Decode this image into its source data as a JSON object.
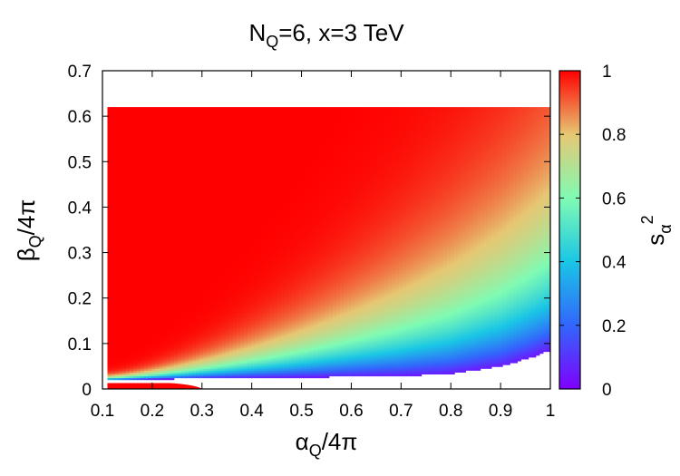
{
  "chart_data": {
    "type": "heatmap",
    "title": {
      "main": "N",
      "sub": "Q",
      "rest": "=6, x=3 TeV"
    },
    "xlabel": {
      "greek": "α",
      "sub": "Q",
      "rest": "/4π"
    },
    "ylabel": {
      "greek": "β",
      "sub": "Q",
      "rest": "/4π"
    },
    "colorbar_label": {
      "base": "s",
      "sub": "α",
      "sup": "2"
    },
    "xlim": [
      0.1,
      1.0
    ],
    "ylim": [
      0,
      0.7
    ],
    "zlim": [
      0,
      1
    ],
    "x_ticks": [
      "0.1",
      "0.2",
      "0.3",
      "0.4",
      "0.5",
      "0.6",
      "0.7",
      "0.8",
      "0.9",
      "1"
    ],
    "x_tick_values": [
      0.1,
      0.2,
      0.3,
      0.4,
      0.5,
      0.6,
      0.7,
      0.8,
      0.9,
      1.0
    ],
    "y_ticks": [
      "0",
      "0.1",
      "0.2",
      "0.3",
      "0.4",
      "0.5",
      "0.6",
      "0.7"
    ],
    "y_tick_values": [
      0,
      0.1,
      0.2,
      0.3,
      0.4,
      0.5,
      0.6,
      0.7
    ],
    "colorbar_ticks": [
      "0",
      "0.2",
      "0.4",
      "0.6",
      "0.8",
      "1"
    ],
    "colorbar_tick_values": [
      0,
      0.2,
      0.4,
      0.6,
      0.8,
      1.0
    ],
    "colormap": "rainbow",
    "colormap_stops": [
      "#7f00ff",
      "#3266fc",
      "#1ac6e5",
      "#80fbb3",
      "#e6c773",
      "#ff0000"
    ],
    "grid": false,
    "filled_region": {
      "x_range": [
        0.11,
        1.0
      ],
      "y_top": 0.62,
      "lower_boundary": [
        [
          0.11,
          0.02
        ],
        [
          0.3,
          0.024
        ],
        [
          0.5,
          0.026
        ],
        [
          0.7,
          0.029
        ],
        [
          0.8,
          0.034
        ],
        [
          0.9,
          0.05
        ],
        [
          0.95,
          0.066
        ],
        [
          1.0,
          0.085
        ]
      ],
      "s_alpha_sq_along_boundary": 0.05,
      "s_alpha_sq_bulk": 1.0
    },
    "small_island": {
      "x_range": [
        0.11,
        0.3
      ],
      "y_range": [
        0,
        0.013
      ],
      "s_alpha_sq": 1.0
    }
  }
}
